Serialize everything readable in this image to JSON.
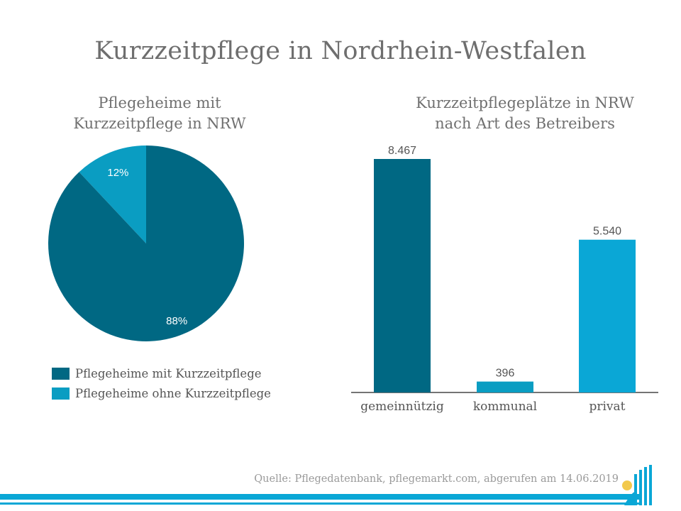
{
  "title": "Kurzzeitpflege in Nordrhein-Westfalen",
  "colors": {
    "dark": "#006883",
    "light": "#0a9dc2",
    "bright": "#0aa7d6"
  },
  "chart_data": [
    {
      "type": "pie",
      "title": "Pflegeheime mit Kurzzeitpflege in NRW",
      "title_lines": [
        "Pflegeheime mit",
        "Kurzzeitpflege in NRW"
      ],
      "slices": [
        {
          "label": "Pflegeheime mit Kurzzeitpflege",
          "value": 88,
          "display": "88%",
          "color": "#006883"
        },
        {
          "label": "Pflegeheime ohne Kurzzeitpflege",
          "value": 12,
          "display": "12%",
          "color": "#0a9dc2"
        }
      ],
      "legend_position": "bottom"
    },
    {
      "type": "bar",
      "title": "Kurzzeitpflegeplätze in NRW nach Art des Betreibers",
      "title_lines": [
        "Kurzzeitpflegeplätze in NRW",
        "nach Art des Betreibers"
      ],
      "categories": [
        "gemeinnützig",
        "kommunal",
        "privat"
      ],
      "values": [
        8467,
        396,
        5540
      ],
      "value_labels": [
        "8.467",
        "396",
        "5.540"
      ],
      "colors": [
        "#006883",
        "#0a9dc2",
        "#0aa7d6"
      ],
      "ylim": [
        0,
        8467
      ],
      "grid": false
    }
  ],
  "source": "Quelle: Pflegedatenbank, pflegemarkt.com, abgerufen am 14.06.2019",
  "logo_icon": "pflegemarkt-logo-icon"
}
